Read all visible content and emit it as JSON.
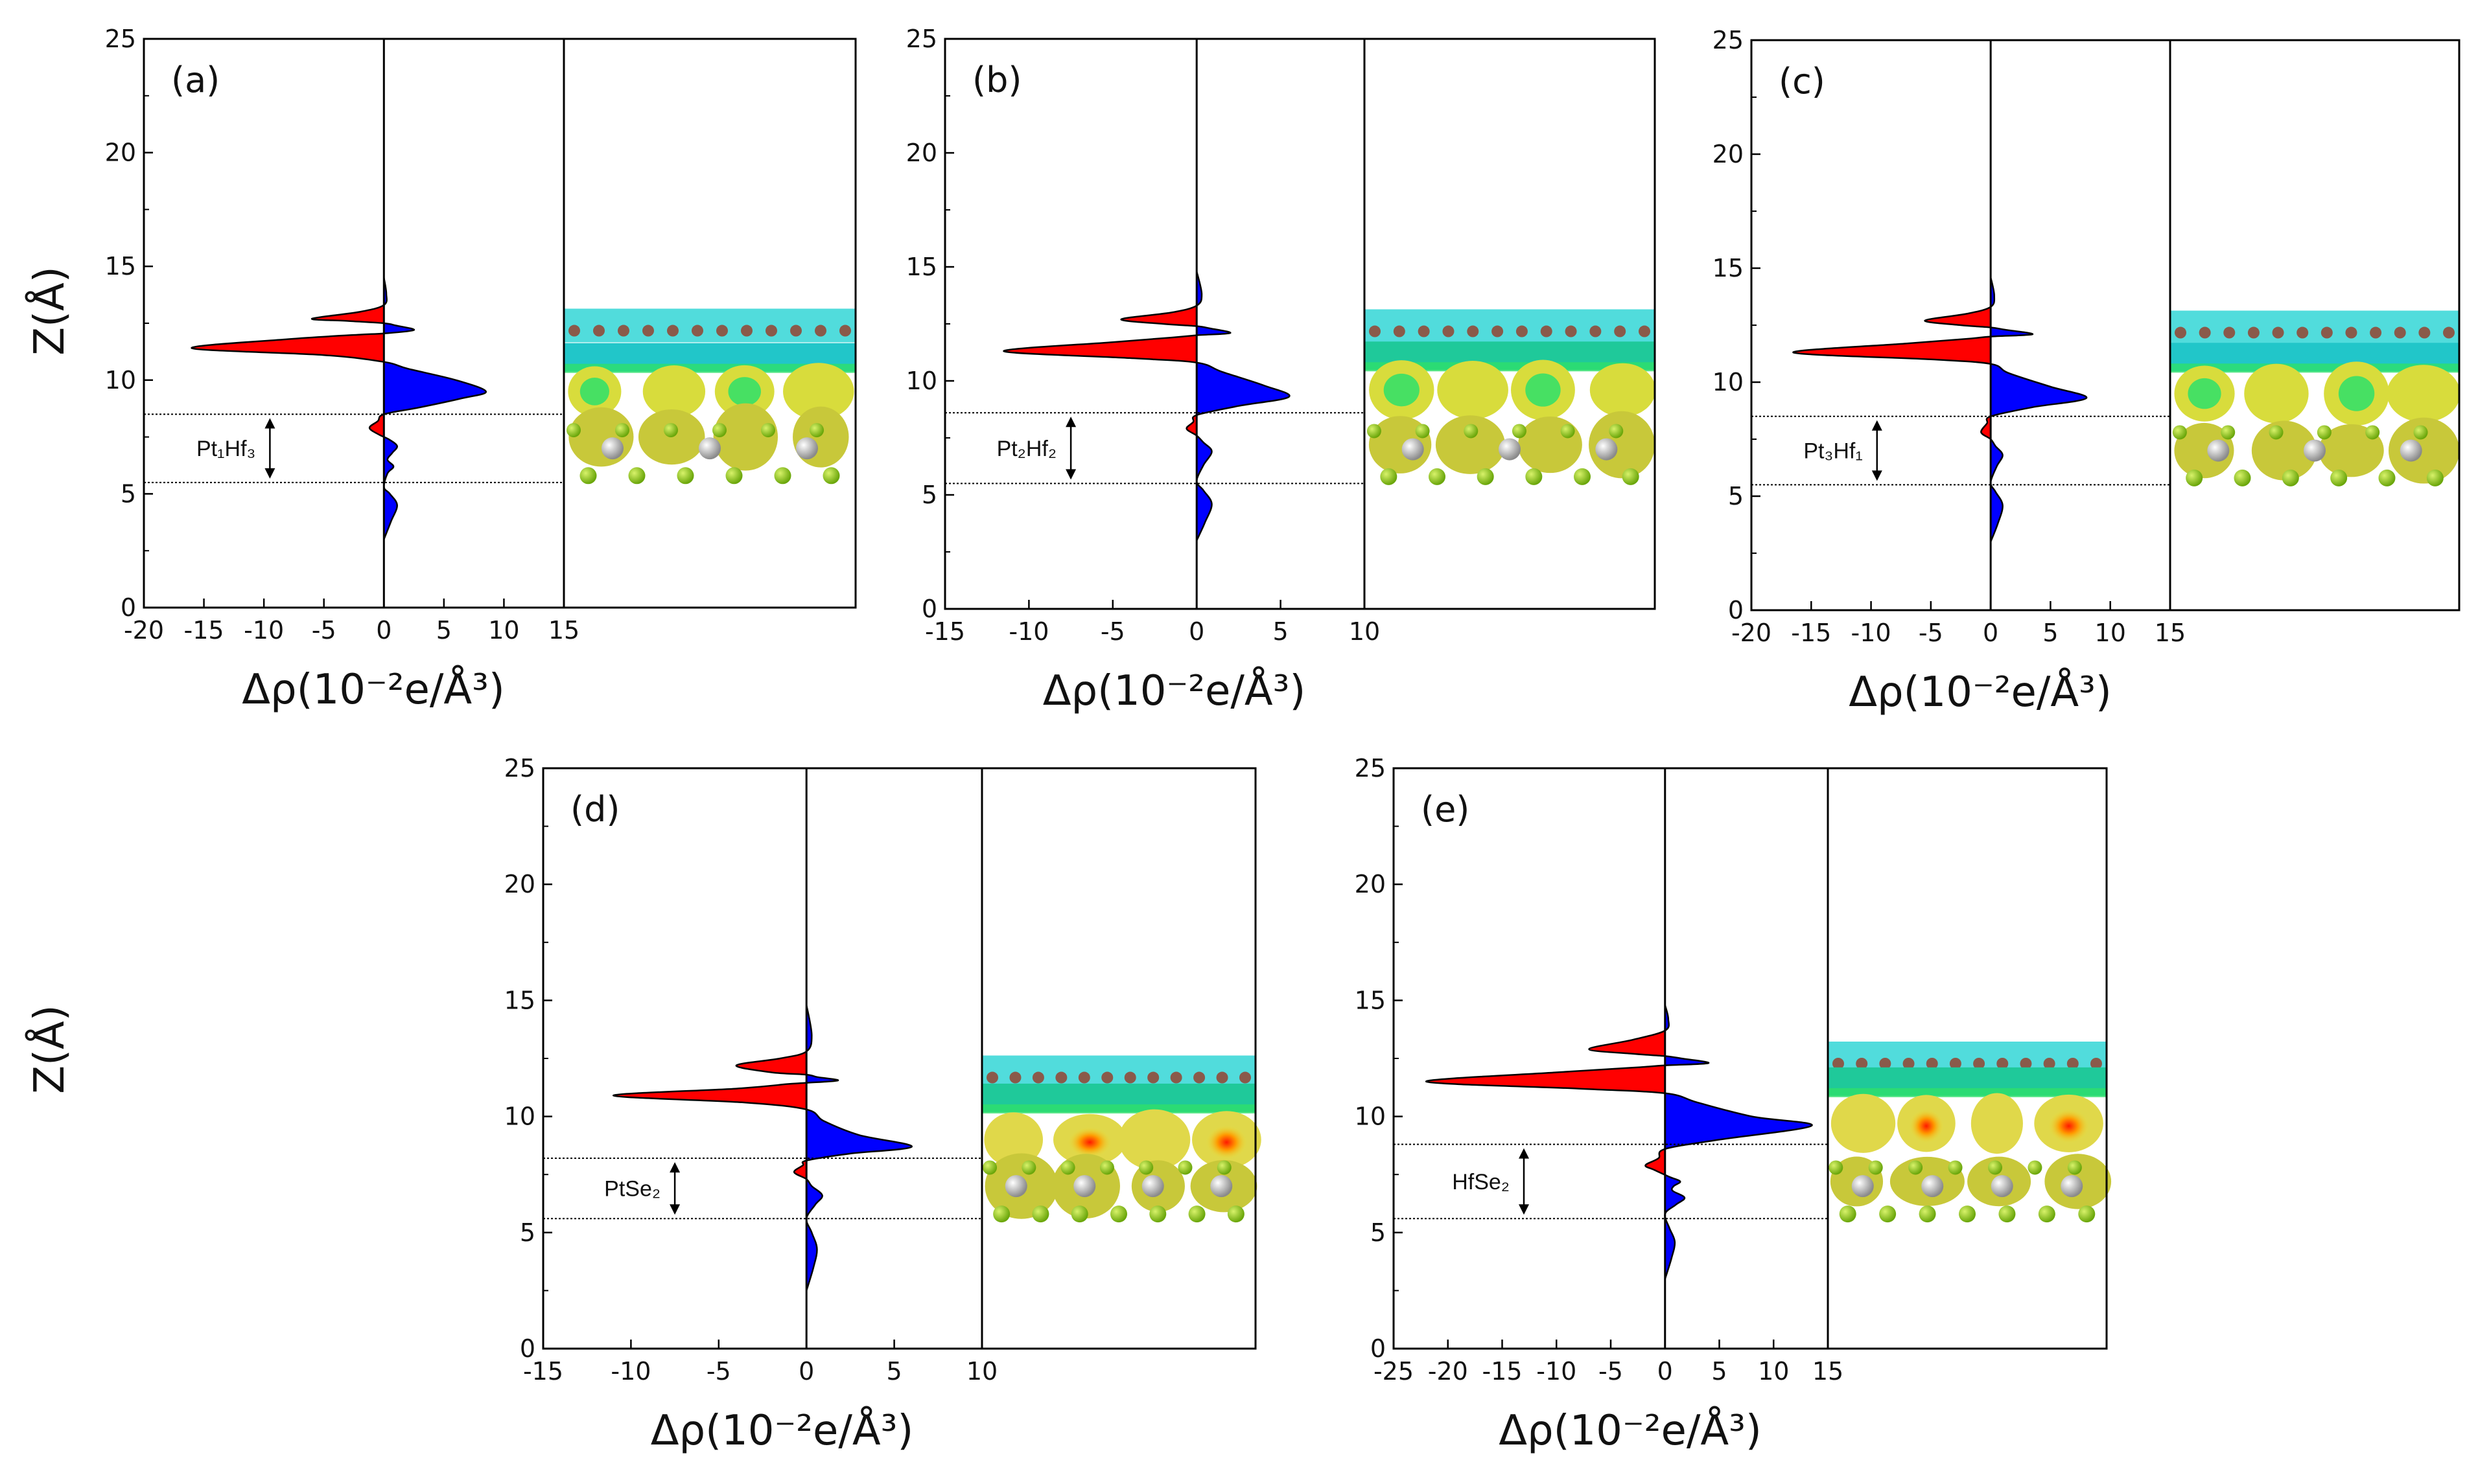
{
  "figure": {
    "ylabel": "Z(Å)",
    "xlabel": "Δρ(10⁻²e/Å³)"
  },
  "chart_data": [
    {
      "type": "area",
      "panel": "(a)",
      "region": {
        "label": "Pt₁Hf₃",
        "z_range": [
          5.5,
          8.5
        ]
      },
      "xlim": [
        -20,
        15
      ],
      "ylim": [
        0,
        25
      ],
      "xticks": [
        -20,
        -15,
        -10,
        -5,
        0,
        5,
        10,
        15
      ],
      "yticks": [
        0,
        5,
        10,
        15,
        20,
        25
      ],
      "profile": [
        [
          0,
          3.0
        ],
        [
          0.6,
          3.8
        ],
        [
          1.1,
          4.5
        ],
        [
          0.5,
          5.0
        ],
        [
          0,
          5.3
        ],
        [
          0.3,
          5.9
        ],
        [
          0.8,
          6.2
        ],
        [
          0.3,
          6.5
        ],
        [
          0.7,
          6.8
        ],
        [
          1.1,
          7.1
        ],
        [
          0.4,
          7.4
        ],
        [
          -0.4,
          7.6
        ],
        [
          -1.2,
          7.9
        ],
        [
          -0.5,
          8.2
        ],
        [
          0,
          8.5
        ],
        [
          3,
          8.8
        ],
        [
          6.5,
          9.2
        ],
        [
          8.5,
          9.5
        ],
        [
          6,
          10.0
        ],
        [
          2,
          10.5
        ],
        [
          0,
          10.8
        ],
        [
          -5,
          11.1
        ],
        [
          -16,
          11.4
        ],
        [
          -8,
          11.8
        ],
        [
          -2,
          12.0
        ],
        [
          0,
          12.05
        ],
        [
          2.5,
          12.2
        ],
        [
          1,
          12.4
        ],
        [
          0,
          12.5
        ],
        [
          -3,
          12.6
        ],
        [
          -6,
          12.7
        ],
        [
          -2,
          13.0
        ],
        [
          0,
          13.3
        ],
        [
          0.2,
          13.8
        ],
        [
          0,
          14.5
        ]
      ],
      "isosurface": {
        "bands": [
          {
            "z": 12.4,
            "color": "#33d6d6",
            "kind": "atoms"
          },
          {
            "z": 11.0,
            "color": "#21c6c9",
            "kind": "sheet"
          },
          {
            "z": 9.5,
            "color": "#d8dc3c",
            "kind": "blobs"
          },
          {
            "z": 7.5,
            "color": "#c8c83a",
            "kind": "blobs"
          }
        ],
        "atoms": {
          "grey": 3,
          "green": 6
        }
      }
    },
    {
      "type": "area",
      "panel": "(b)",
      "region": {
        "label": "Pt₂Hf₂",
        "z_range": [
          5.5,
          8.6
        ]
      },
      "xlim": [
        -15,
        10
      ],
      "ylim": [
        0,
        25
      ],
      "xticks": [
        -15,
        -10,
        -5,
        0,
        5,
        10
      ],
      "yticks": [
        0,
        5,
        10,
        15,
        20,
        25
      ],
      "profile": [
        [
          0,
          3.0
        ],
        [
          0.5,
          3.8
        ],
        [
          0.9,
          4.6
        ],
        [
          0.4,
          5.2
        ],
        [
          0,
          5.6
        ],
        [
          0.4,
          6.3
        ],
        [
          0.9,
          6.9
        ],
        [
          0.4,
          7.3
        ],
        [
          0,
          7.6
        ],
        [
          -0.6,
          7.9
        ],
        [
          -0.2,
          8.2
        ],
        [
          0,
          8.5
        ],
        [
          2.5,
          8.9
        ],
        [
          5.5,
          9.3
        ],
        [
          4,
          9.8
        ],
        [
          1.5,
          10.4
        ],
        [
          0,
          10.8
        ],
        [
          -4,
          11.0
        ],
        [
          -11.5,
          11.3
        ],
        [
          -5,
          11.7
        ],
        [
          -1.5,
          11.9
        ],
        [
          0,
          12.0
        ],
        [
          2,
          12.1
        ],
        [
          0.8,
          12.3
        ],
        [
          0,
          12.4
        ],
        [
          -2,
          12.5
        ],
        [
          -4.5,
          12.7
        ],
        [
          -1.5,
          13.0
        ],
        [
          0,
          13.3
        ],
        [
          0.3,
          13.8
        ],
        [
          0,
          14.8
        ]
      ],
      "isosurface": {
        "bands": [
          {
            "z": 12.4,
            "color": "#33d6d6",
            "kind": "atoms"
          },
          {
            "z": 11.1,
            "color": "#1fc99a",
            "kind": "sheet"
          },
          {
            "z": 9.6,
            "color": "#d8dc3c",
            "kind": "blobs"
          },
          {
            "z": 7.2,
            "color": "#c8c83a",
            "kind": "blobs"
          }
        ],
        "atoms": {
          "grey": 3,
          "green": 6
        }
      }
    },
    {
      "type": "area",
      "panel": "(c)",
      "region": {
        "label": "Pt₃Hf₁",
        "z_range": [
          5.5,
          8.5
        ]
      },
      "xlim": [
        -20,
        15
      ],
      "ylim": [
        0,
        25
      ],
      "xticks": [
        -20,
        -15,
        -10,
        -5,
        0,
        5,
        10,
        15
      ],
      "yticks": [
        0,
        5,
        10,
        15,
        20,
        25
      ],
      "profile": [
        [
          0,
          3.0
        ],
        [
          0.6,
          3.8
        ],
        [
          1,
          4.6
        ],
        [
          0.4,
          5.2
        ],
        [
          0,
          5.6
        ],
        [
          0.5,
          6.3
        ],
        [
          1,
          6.8
        ],
        [
          0.4,
          7.2
        ],
        [
          0,
          7.5
        ],
        [
          -0.8,
          7.8
        ],
        [
          -0.3,
          8.2
        ],
        [
          0,
          8.5
        ],
        [
          3.5,
          8.9
        ],
        [
          8,
          9.3
        ],
        [
          5,
          9.8
        ],
        [
          1.5,
          10.4
        ],
        [
          0,
          10.8
        ],
        [
          -5,
          11.0
        ],
        [
          -16.5,
          11.3
        ],
        [
          -7,
          11.7
        ],
        [
          -2,
          11.9
        ],
        [
          0,
          12.0
        ],
        [
          3.5,
          12.1
        ],
        [
          1.2,
          12.3
        ],
        [
          0,
          12.4
        ],
        [
          -2.5,
          12.5
        ],
        [
          -5.5,
          12.7
        ],
        [
          -2,
          13.0
        ],
        [
          0,
          13.3
        ],
        [
          0.3,
          13.8
        ],
        [
          0,
          14.6
        ]
      ],
      "isosurface": {
        "bands": [
          {
            "z": 12.4,
            "color": "#33d6d6",
            "kind": "atoms"
          },
          {
            "z": 11.1,
            "color": "#21c6c9",
            "kind": "sheet"
          },
          {
            "z": 9.5,
            "color": "#d8dc3c",
            "kind": "blobs"
          },
          {
            "z": 7.0,
            "color": "#c8c83a",
            "kind": "blobs"
          }
        ],
        "atoms": {
          "grey": 3,
          "green": 6
        }
      }
    },
    {
      "type": "area",
      "panel": "(d)",
      "region": {
        "label": "PtSe₂",
        "z_range": [
          5.6,
          8.2
        ]
      },
      "xlim": [
        -15,
        10
      ],
      "ylim": [
        0,
        25
      ],
      "xticks": [
        -15,
        -10,
        -5,
        0,
        5,
        10
      ],
      "yticks": [
        0,
        5,
        10,
        15,
        20,
        25
      ],
      "profile": [
        [
          0,
          2.5
        ],
        [
          0.4,
          3.5
        ],
        [
          0.6,
          4.3
        ],
        [
          0.3,
          5.0
        ],
        [
          0,
          5.6
        ],
        [
          0.5,
          6.2
        ],
        [
          0.9,
          6.6
        ],
        [
          0.3,
          7.0
        ],
        [
          0,
          7.3
        ],
        [
          -0.7,
          7.6
        ],
        [
          -0.2,
          7.9
        ],
        [
          0,
          8.1
        ],
        [
          2.5,
          8.4
        ],
        [
          6,
          8.7
        ],
        [
          3,
          9.2
        ],
        [
          1,
          9.8
        ],
        [
          0,
          10.3
        ],
        [
          -3.5,
          10.6
        ],
        [
          -11,
          10.9
        ],
        [
          -4,
          11.2
        ],
        [
          -1,
          11.4
        ],
        [
          0,
          11.45
        ],
        [
          1.8,
          11.55
        ],
        [
          0.6,
          11.7
        ],
        [
          0,
          11.8
        ],
        [
          -2,
          11.9
        ],
        [
          -4,
          12.2
        ],
        [
          -1.5,
          12.5
        ],
        [
          0,
          12.8
        ],
        [
          0.3,
          13.5
        ],
        [
          0,
          14.8
        ]
      ],
      "isosurface": {
        "bands": [
          {
            "z": 11.9,
            "color": "#33d6d6",
            "kind": "atoms"
          },
          {
            "z": 10.8,
            "color": "#1fc99a",
            "kind": "sheet"
          },
          {
            "z": 9.0,
            "color": "#e0d84a",
            "kind": "blobs"
          },
          {
            "z": 7.0,
            "color": "#c8c83a",
            "kind": "blobs"
          }
        ],
        "atoms": {
          "grey": 4,
          "green": 7
        }
      }
    },
    {
      "type": "area",
      "panel": "(e)",
      "region": {
        "label": "HfSe₂",
        "z_range": [
          5.6,
          8.8
        ]
      },
      "xlim": [
        -25,
        15
      ],
      "ylim": [
        0,
        25
      ],
      "xticks": [
        -25,
        -20,
        -15,
        -10,
        -5,
        0,
        5,
        10,
        15
      ],
      "yticks": [
        0,
        5,
        10,
        15,
        20,
        25
      ],
      "profile": [
        [
          0,
          3.0
        ],
        [
          0.6,
          3.9
        ],
        [
          0.9,
          4.6
        ],
        [
          0.4,
          5.2
        ],
        [
          0,
          5.8
        ],
        [
          1,
          6.2
        ],
        [
          1.8,
          6.5
        ],
        [
          0.7,
          6.8
        ],
        [
          0.8,
          7.0
        ],
        [
          1.4,
          7.2
        ],
        [
          0.4,
          7.4
        ],
        [
          -1,
          7.7
        ],
        [
          -1.8,
          7.9
        ],
        [
          -0.6,
          8.2
        ],
        [
          0,
          8.6
        ],
        [
          5,
          9.0
        ],
        [
          13.5,
          9.6
        ],
        [
          8,
          10.0
        ],
        [
          3,
          10.6
        ],
        [
          0,
          11.0
        ],
        [
          -8,
          11.2
        ],
        [
          -22,
          11.5
        ],
        [
          -10,
          11.9
        ],
        [
          -3,
          12.1
        ],
        [
          0,
          12.2
        ],
        [
          4,
          12.3
        ],
        [
          1.5,
          12.5
        ],
        [
          0,
          12.6
        ],
        [
          -3,
          12.7
        ],
        [
          -7,
          12.9
        ],
        [
          -3,
          13.3
        ],
        [
          0,
          13.7
        ],
        [
          0.3,
          14.2
        ],
        [
          0,
          14.8
        ]
      ],
      "isosurface": {
        "bands": [
          {
            "z": 12.5,
            "color": "#33d6d6",
            "kind": "atoms"
          },
          {
            "z": 11.5,
            "color": "#1fc99a",
            "kind": "sheet"
          },
          {
            "z": 9.7,
            "color": "#e0d84a",
            "kind": "blobs"
          },
          {
            "z": 7.2,
            "color": "#c8c83a",
            "kind": "blobs"
          }
        ],
        "atoms": {
          "grey": 4,
          "green": 7
        }
      }
    }
  ]
}
